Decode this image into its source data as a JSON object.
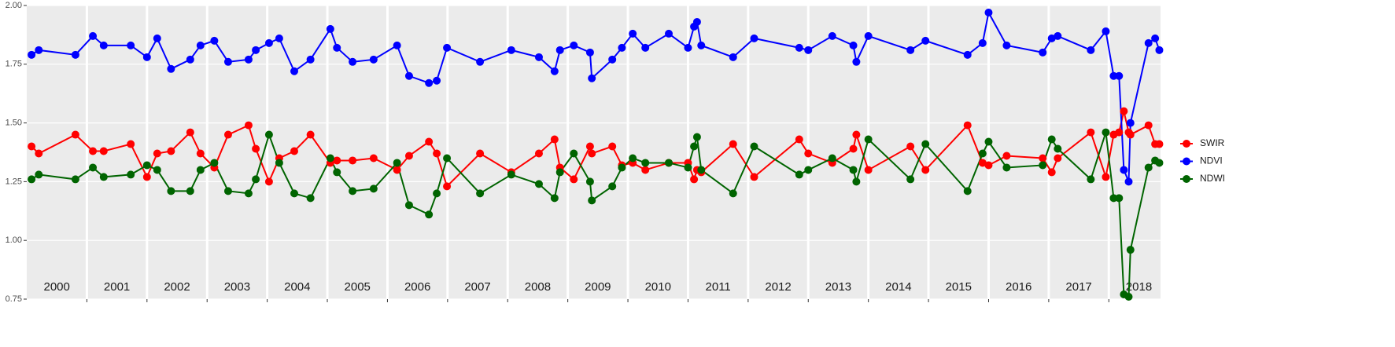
{
  "chart_data": {
    "type": "line",
    "x": [
      2000.08,
      2000.2,
      2000.81,
      2001.1,
      2001.28,
      2001.73,
      2002.0,
      2002.17,
      2002.4,
      2002.72,
      2002.89,
      2003.12,
      2003.35,
      2003.69,
      2003.81,
      2004.03,
      2004.2,
      2004.45,
      2004.72,
      2005.05,
      2005.16,
      2005.42,
      2005.77,
      2006.16,
      2006.36,
      2006.69,
      2006.82,
      2006.99,
      2007.54,
      2008.06,
      2008.52,
      2008.78,
      2008.87,
      2009.1,
      2009.37,
      2009.4,
      2009.74,
      2009.9,
      2010.08,
      2010.29,
      2010.68,
      2011.0,
      2011.1,
      2011.15,
      2011.22,
      2011.75,
      2012.1,
      2012.85,
      2013.0,
      2013.4,
      2013.75,
      2013.8,
      2014.0,
      2014.7,
      2014.95,
      2015.65,
      2015.9,
      2016.0,
      2016.3,
      2016.9,
      2017.05,
      2017.15,
      2017.7,
      2017.95,
      2018.08,
      2018.17,
      2018.25,
      2018.33,
      2018.36,
      2018.66,
      2018.77,
      2018.84
    ],
    "series": [
      {
        "name": "SWIR",
        "color": "#ff0000",
        "values": [
          1.4,
          1.37,
          1.45,
          1.38,
          1.38,
          1.41,
          1.27,
          1.37,
          1.38,
          1.46,
          1.37,
          1.31,
          1.45,
          1.49,
          1.39,
          1.25,
          1.35,
          1.38,
          1.45,
          1.33,
          1.34,
          1.34,
          1.35,
          1.3,
          1.36,
          1.42,
          1.37,
          1.23,
          1.37,
          1.29,
          1.37,
          1.43,
          1.31,
          1.26,
          1.4,
          1.37,
          1.4,
          1.32,
          1.33,
          1.3,
          1.33,
          1.33,
          1.26,
          1.3,
          1.29,
          1.41,
          1.27,
          1.43,
          1.37,
          1.33,
          1.39,
          1.45,
          1.3,
          1.4,
          1.3,
          1.49,
          1.33,
          1.32,
          1.36,
          1.35,
          1.29,
          1.35,
          1.46,
          1.27,
          1.45,
          1.46,
          1.55,
          1.46,
          1.45,
          1.49,
          1.41,
          1.41
        ]
      },
      {
        "name": "NDVI",
        "color": "#0000ff",
        "values": [
          1.79,
          1.81,
          1.79,
          1.87,
          1.83,
          1.83,
          1.78,
          1.86,
          1.73,
          1.77,
          1.83,
          1.85,
          1.76,
          1.77,
          1.81,
          1.84,
          1.86,
          1.72,
          1.77,
          1.9,
          1.82,
          1.76,
          1.77,
          1.83,
          1.7,
          1.67,
          1.68,
          1.82,
          1.76,
          1.81,
          1.78,
          1.72,
          1.81,
          1.83,
          1.8,
          1.69,
          1.77,
          1.82,
          1.88,
          1.82,
          1.88,
          1.82,
          1.91,
          1.93,
          1.83,
          1.78,
          1.86,
          1.82,
          1.81,
          1.87,
          1.83,
          1.76,
          1.87,
          1.81,
          1.85,
          1.79,
          1.84,
          1.97,
          1.83,
          1.8,
          1.86,
          1.87,
          1.81,
          1.89,
          1.7,
          1.7,
          1.3,
          1.25,
          1.5,
          1.84,
          1.86,
          1.81
        ]
      },
      {
        "name": "NDWI",
        "color": "#006400",
        "values": [
          1.26,
          1.28,
          1.26,
          1.31,
          1.27,
          1.28,
          1.32,
          1.3,
          1.21,
          1.21,
          1.3,
          1.33,
          1.21,
          1.2,
          1.26,
          1.45,
          1.33,
          1.2,
          1.18,
          1.35,
          1.29,
          1.21,
          1.22,
          1.33,
          1.15,
          1.11,
          1.2,
          1.35,
          1.2,
          1.28,
          1.24,
          1.18,
          1.29,
          1.37,
          1.25,
          1.17,
          1.23,
          1.31,
          1.35,
          1.33,
          1.33,
          1.31,
          1.4,
          1.44,
          1.3,
          1.2,
          1.4,
          1.28,
          1.3,
          1.35,
          1.3,
          1.25,
          1.43,
          1.26,
          1.41,
          1.21,
          1.37,
          1.42,
          1.31,
          1.32,
          1.43,
          1.39,
          1.26,
          1.46,
          1.18,
          1.18,
          0.77,
          0.76,
          0.96,
          1.31,
          1.34,
          1.33
        ]
      }
    ],
    "categories": [
      "2000",
      "2001",
      "2002",
      "2003",
      "2004",
      "2005",
      "2006",
      "2007",
      "2008",
      "2009",
      "2010",
      "2011",
      "2012",
      "2013",
      "2014",
      "2015",
      "2016",
      "2017",
      "2018"
    ],
    "xlim": [
      2000,
      2018.86
    ],
    "xticks": [
      2001,
      2002,
      2003,
      2004,
      2005,
      2006,
      2007,
      2008,
      2009,
      2010,
      2011,
      2012,
      2013,
      2014,
      2015,
      2016,
      2017,
      2018
    ],
    "ylim": [
      0.75,
      2.0
    ],
    "yticks": [
      0.75,
      {
        "value": 1.0,
        "label": "1.00"
      },
      1.25,
      {
        "value": 1.5,
        "label": "1.50"
      },
      1.75,
      {
        "value": 2.0,
        "label": "2.00"
      }
    ],
    "grid": true
  }
}
